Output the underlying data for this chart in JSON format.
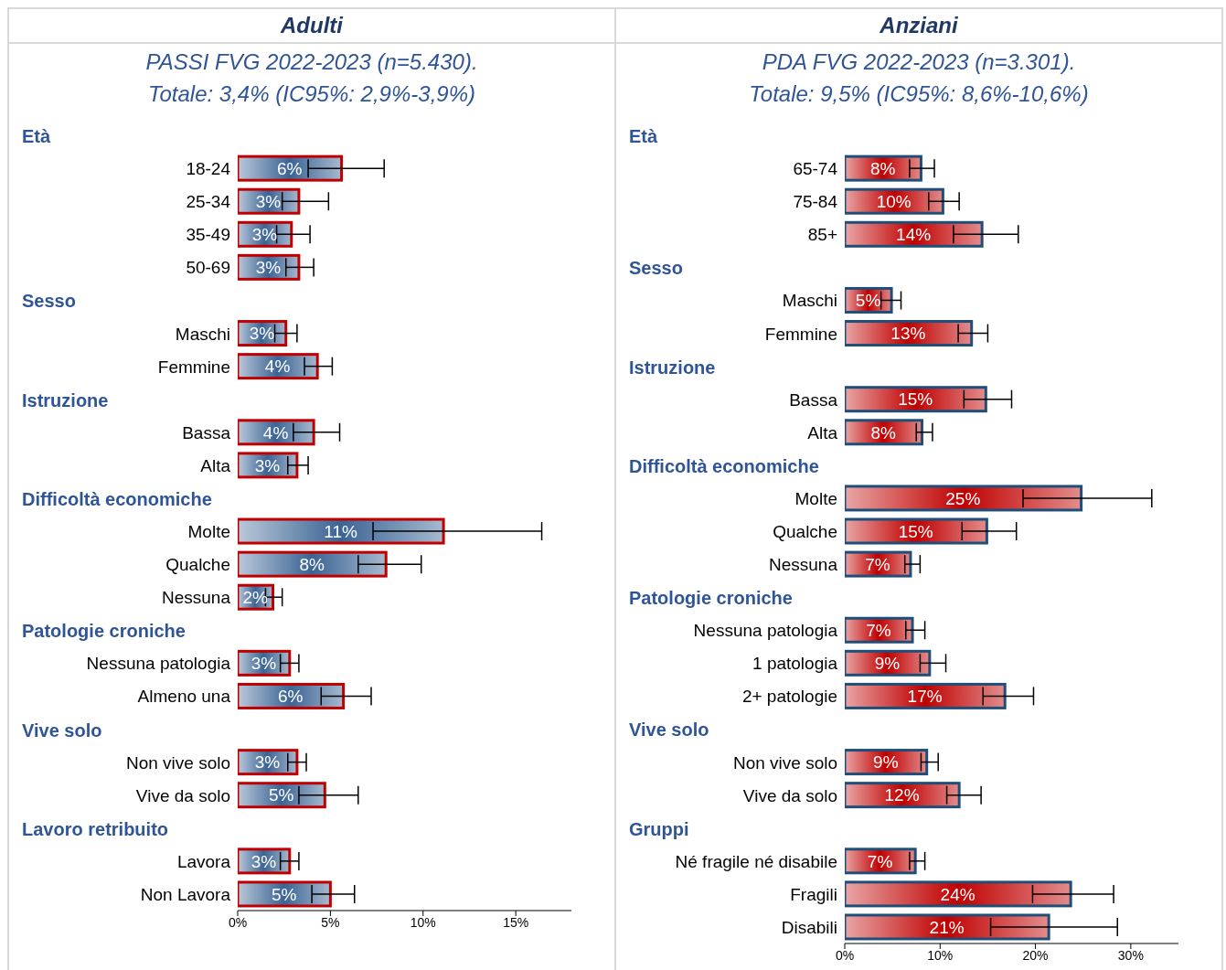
{
  "chart_data": [
    {
      "type": "bar",
      "orientation": "horizontal",
      "title": "Adulti",
      "subtitle": "PASSI FVG 2022-2023 (n=5.430).",
      "annotations": [
        "Totale: 3,4% (IC95%: 2,9%-3,9%)",
        "Età",
        "Sesso",
        "Istruzione",
        "Difficoltà economiche",
        "Patologie croniche",
        "Vive solo",
        "Lavoro retribuito"
      ],
      "categories": [
        null,
        "18-24",
        "25-34",
        "35-49",
        "50-69",
        null,
        "Maschi",
        "Femmine",
        null,
        "Bassa",
        "Alta",
        null,
        "Molte",
        "Qualche",
        "Nessuna",
        null,
        "Nessuna patologia",
        "Almeno una",
        null,
        "Non vive solo",
        "Vive da solo",
        null,
        "Lavora",
        "Non Lavora"
      ],
      "values": [
        null,
        5.6,
        3.3,
        2.9,
        3.3,
        null,
        2.6,
        4.3,
        null,
        4.1,
        3.2,
        null,
        11.1,
        8.0,
        1.9,
        null,
        2.8,
        5.7,
        null,
        3.2,
        4.7,
        null,
        2.8,
        5.0
      ],
      "value_labels": [
        null,
        "6%",
        "3%",
        "3%",
        "3%",
        null,
        "3%",
        "4%",
        null,
        "4%",
        "3%",
        null,
        "11%",
        "8%",
        "2%",
        null,
        "3%",
        "6%",
        null,
        "3%",
        "5%",
        null,
        "3%",
        "5%"
      ],
      "errors": [
        null,
        [
          3.8,
          7.9
        ],
        [
          2.4,
          4.9
        ],
        [
          2.1,
          3.9
        ],
        [
          2.6,
          4.1
        ],
        null,
        [
          2.0,
          3.2
        ],
        [
          3.6,
          5.1
        ],
        null,
        [
          3.0,
          5.5
        ],
        [
          2.7,
          3.8
        ],
        null,
        [
          7.3,
          16.4
        ],
        [
          6.5,
          9.9
        ],
        [
          1.5,
          2.4
        ],
        null,
        [
          2.3,
          3.3
        ],
        [
          4.5,
          7.2
        ],
        null,
        [
          2.7,
          3.7
        ],
        [
          3.3,
          6.5
        ],
        null,
        [
          2.3,
          3.3
        ],
        [
          4.0,
          6.3
        ]
      ],
      "color": "#3b6494",
      "xlim": [
        0,
        18
      ],
      "xticks": [
        {
          "value": 0,
          "label": "0%"
        },
        {
          "value": 5,
          "label": "5%"
        },
        {
          "value": 10,
          "label": "10%"
        },
        {
          "value": 15,
          "label": "15%"
        }
      ],
      "grid": false,
      "legend": false
    },
    {
      "type": "bar",
      "orientation": "horizontal",
      "title": "Anziani",
      "subtitle": "PDA FVG 2022-2023 (n=3.301).",
      "annotations": [
        "Totale: 9,5% (IC95%: 8,6%-10,6%)",
        "Età",
        "Sesso",
        "Istruzione",
        "Difficoltà economiche",
        "Patologie croniche",
        "Vive solo",
        "Gruppi"
      ],
      "categories": [
        null,
        "65-74",
        "75-84",
        "85+",
        null,
        "Maschi",
        "Femmine",
        null,
        "Bassa",
        "Alta",
        null,
        "Molte",
        "Qualche",
        "Nessuna",
        null,
        "Nessuna patologia",
        "1  patologia",
        "2+ patologie",
        null,
        "Non vive solo",
        "Vive da solo",
        null,
        "Né fragile né disabile",
        "Fragili",
        "Disabili"
      ],
      "values": [
        null,
        8.0,
        10.3,
        14.4,
        null,
        4.9,
        13.3,
        null,
        14.8,
        8.1,
        null,
        24.8,
        14.9,
        6.9,
        null,
        7.1,
        8.9,
        16.8,
        null,
        8.6,
        12.0,
        null,
        7.4,
        23.7,
        21.4
      ],
      "value_labels": [
        null,
        "8%",
        "10%",
        "14%",
        null,
        "5%",
        "13%",
        null,
        "15%",
        "8%",
        null,
        "25%",
        "15%",
        "7%",
        null,
        "7%",
        "9%",
        "17%",
        null,
        "9%",
        "12%",
        null,
        "7%",
        "24%",
        "21%"
      ],
      "errors": [
        null,
        [
          6.8,
          9.4
        ],
        [
          8.8,
          12.0
        ],
        [
          11.4,
          18.2
        ],
        null,
        [
          3.8,
          5.9
        ],
        [
          11.9,
          15.0
        ],
        null,
        [
          12.5,
          17.5
        ],
        [
          7.5,
          9.2
        ],
        null,
        [
          18.7,
          32.2
        ],
        [
          12.3,
          18.0
        ],
        [
          6.3,
          7.9
        ],
        null,
        [
          6.4,
          8.4
        ],
        [
          7.9,
          10.6
        ],
        [
          14.5,
          19.8
        ],
        null,
        [
          8.0,
          9.8
        ],
        [
          10.7,
          14.3
        ],
        null,
        [
          6.8,
          8.4
        ],
        [
          19.7,
          28.2
        ],
        [
          15.3,
          28.6
        ]
      ],
      "color": "#c00000",
      "xlim": [
        0,
        35
      ],
      "xticks": [
        {
          "value": 0,
          "label": "0%"
        },
        {
          "value": 10,
          "label": "10%"
        },
        {
          "value": 20,
          "label": "20%"
        },
        {
          "value": 30,
          "label": "30%"
        }
      ],
      "grid": false,
      "legend": false
    }
  ]
}
